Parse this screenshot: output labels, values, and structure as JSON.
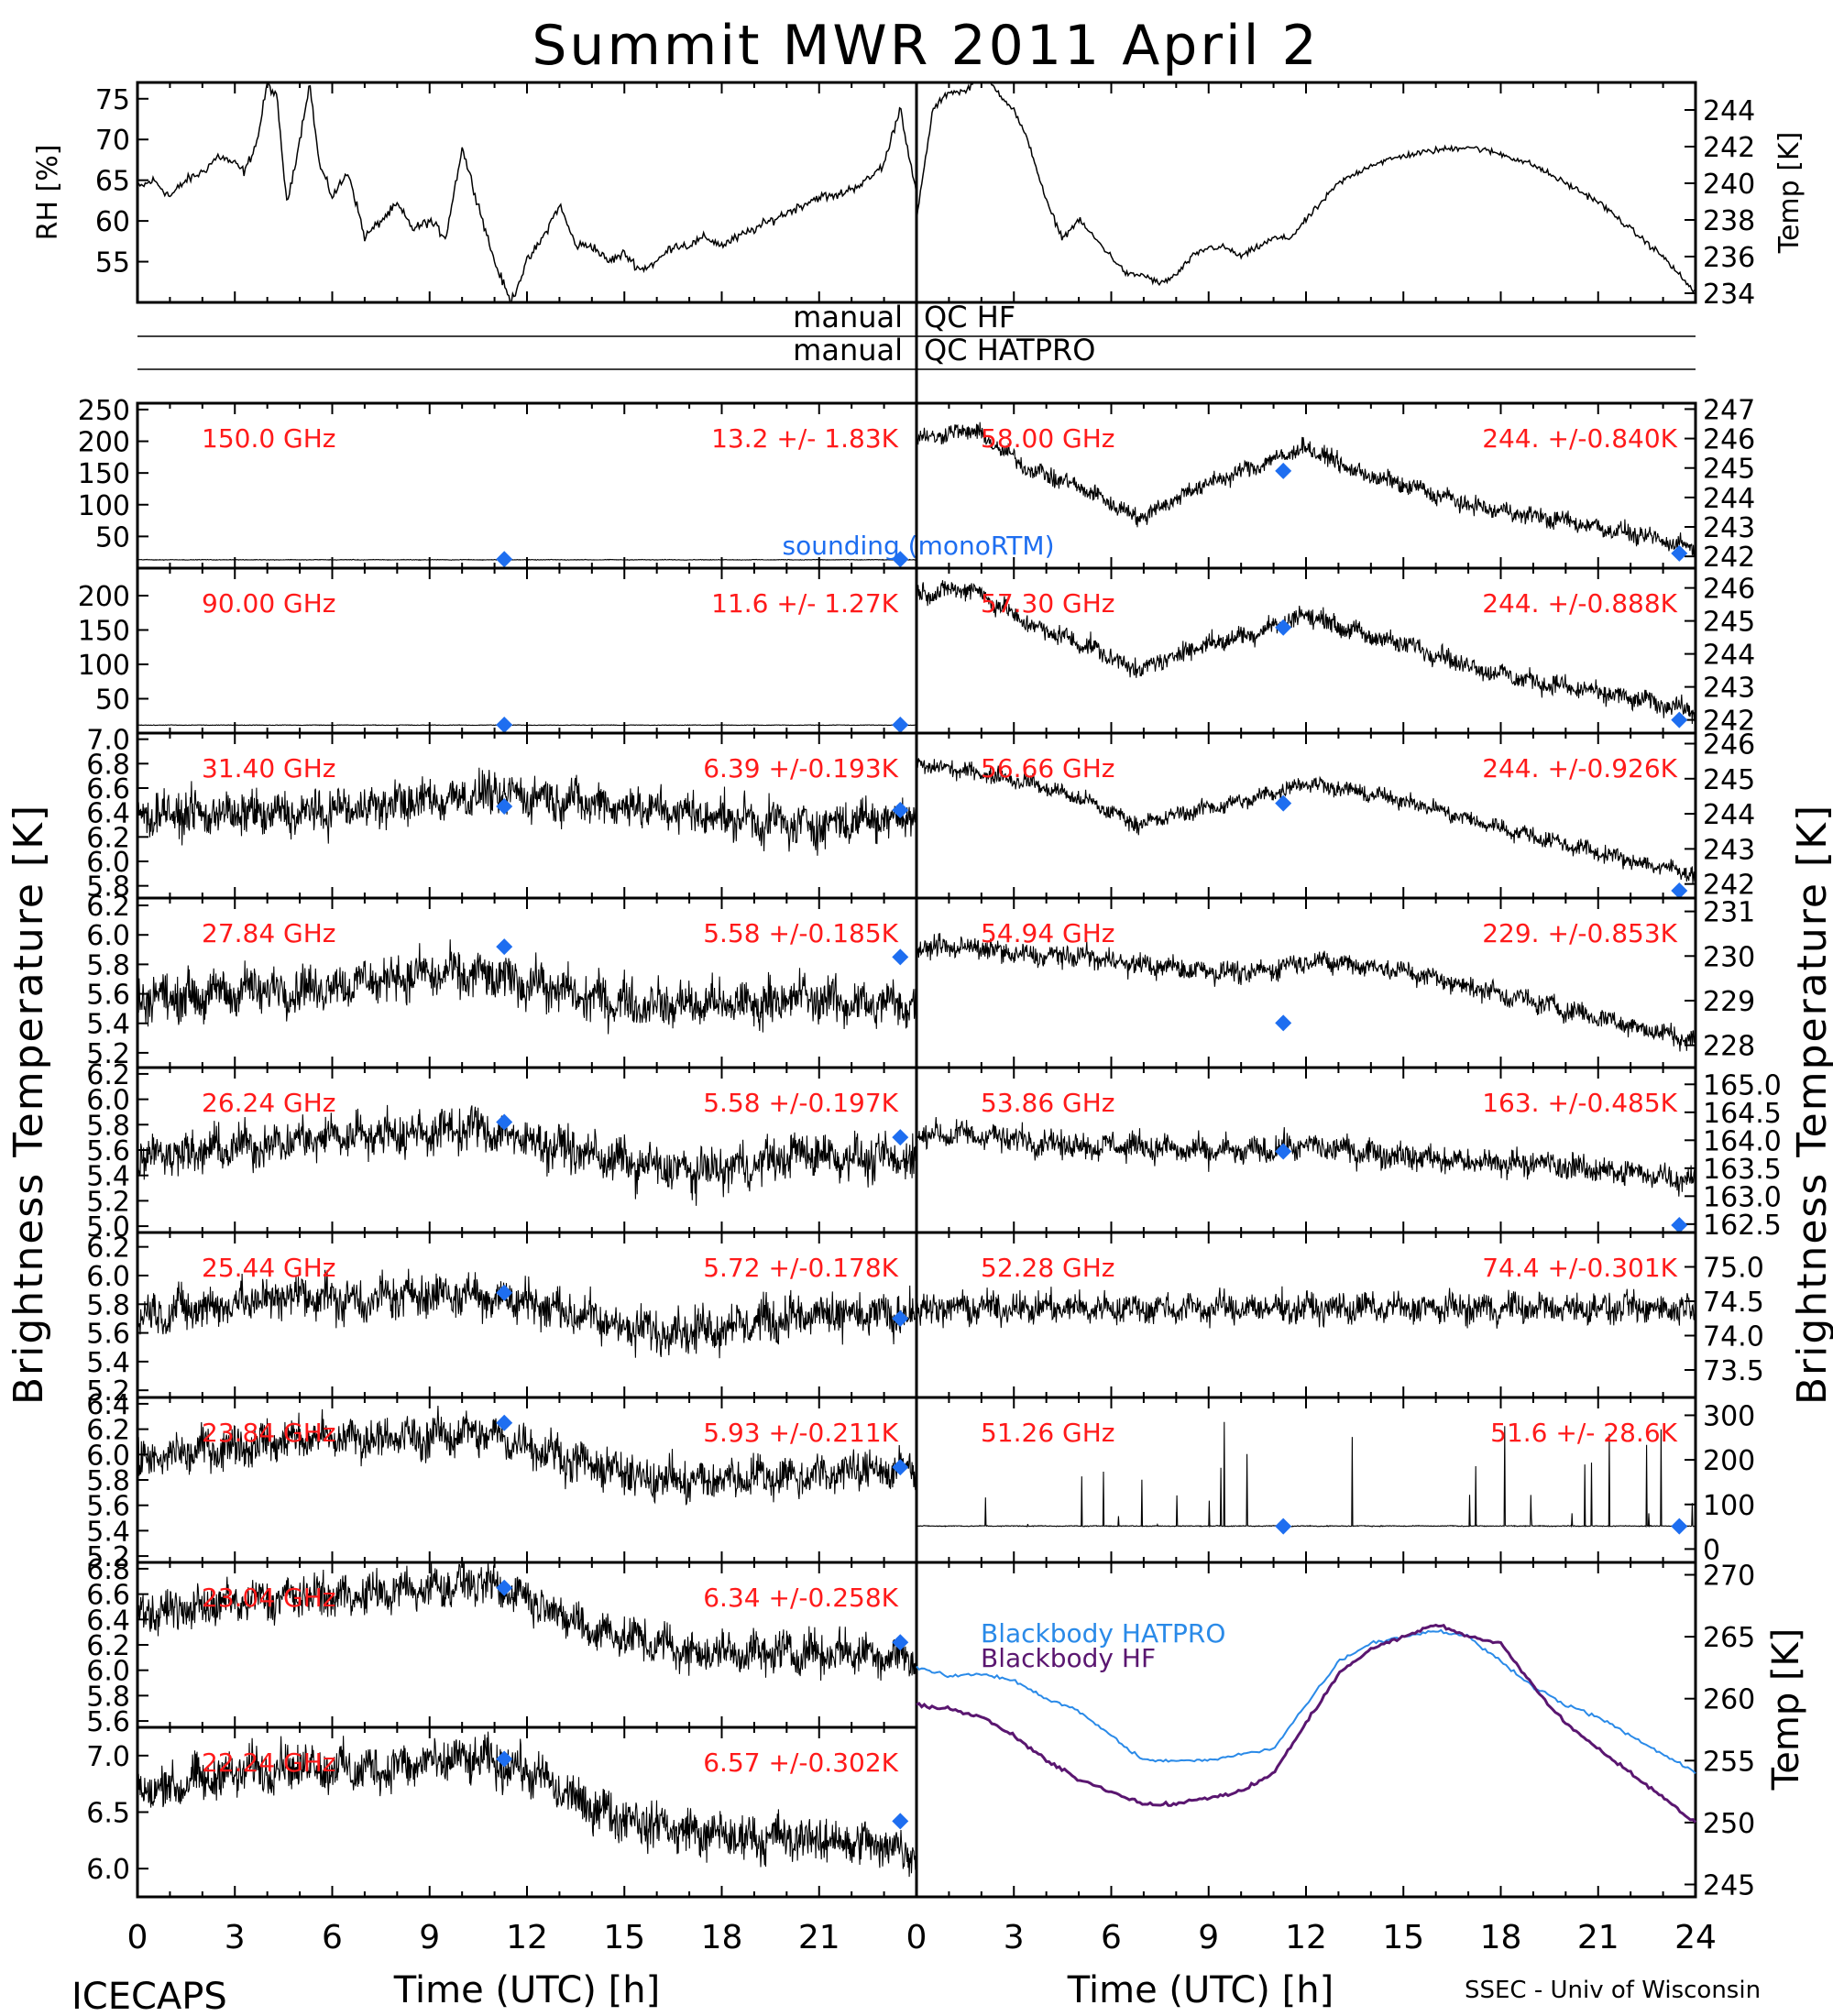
{
  "title": "Summit MWR 2011 April  2",
  "footer_left": "ICECAPS",
  "footer_right": "SSEC - Univ of Wisconsin",
  "x_axis": {
    "label": "Time (UTC) [h]",
    "left_ticks": [
      "0",
      "3",
      "6",
      "9",
      "12",
      "15",
      "18",
      "21"
    ],
    "right_ticks": [
      "0",
      "3",
      "6",
      "9",
      "12",
      "15",
      "18",
      "21",
      "24"
    ]
  },
  "side_labels": {
    "left": "Brightness Temperature [K]",
    "right": "Brightness Temperature [K]"
  },
  "qc_rows": [
    {
      "left": "manual",
      "right": "QC HF"
    },
    {
      "left": "manual",
      "right": "QC HATPRO"
    }
  ],
  "colors": {
    "stat_text": "#ff1a1a",
    "sounding": "#1e6ef0",
    "bb_hatpro": "#2a8ae8",
    "bb_hf": "#5a1670",
    "trace": "#000000"
  },
  "chart_data": [
    {
      "type": "line",
      "panel": "RH",
      "ylabel": "RH [%]",
      "y_ticks": [
        "75",
        "70",
        "65",
        "60",
        "55"
      ],
      "ylim": [
        50,
        77
      ],
      "xlim": [
        0,
        24
      ],
      "x": [
        0,
        0.5,
        1,
        1.5,
        2,
        2.5,
        3,
        3.3,
        3.7,
        4,
        4.3,
        4.6,
        5,
        5.3,
        5.6,
        6,
        6.5,
        7,
        7.5,
        8,
        8.5,
        9,
        9.5,
        10,
        10.5,
        11,
        11.5,
        12,
        12.5,
        13,
        13.5,
        14,
        14.5,
        15,
        15.5,
        16,
        16.5,
        17,
        17.5,
        18,
        18.5,
        19,
        19.5,
        20,
        20.5,
        21,
        21.5,
        22,
        22.5,
        23,
        23.5,
        24
      ],
      "values": [
        64,
        65,
        63,
        65,
        66,
        68,
        67,
        66,
        70,
        77,
        75,
        62,
        70,
        77,
        67,
        63,
        66,
        58,
        60,
        62,
        59,
        60,
        58,
        69,
        62,
        55,
        50,
        55,
        58,
        62,
        57,
        57,
        55,
        56,
        54,
        55,
        57,
        57,
        58,
        57,
        58,
        59,
        60,
        61,
        62,
        63,
        63,
        64,
        65,
        67,
        74,
        63
      ]
    },
    {
      "type": "line",
      "panel": "Temp",
      "ylabel": "Temp [K]",
      "y_ticks": [
        "244",
        "242",
        "240",
        "238",
        "236",
        "234"
      ],
      "ylim": [
        233.5,
        245.5
      ],
      "xlim": [
        0,
        24
      ],
      "x": [
        0,
        0.5,
        1,
        1.5,
        2,
        2.5,
        3,
        3.5,
        4,
        4.5,
        5,
        5.5,
        6,
        6.5,
        7,
        7.5,
        8,
        8.5,
        9,
        9.5,
        10,
        10.5,
        11,
        11.5,
        12,
        12.5,
        13,
        13.5,
        14,
        15,
        16,
        17,
        18,
        19,
        20,
        21,
        22,
        23,
        23.5,
        24
      ],
      "values": [
        238,
        244,
        245,
        245,
        246,
        245,
        244,
        242,
        239,
        237,
        238,
        237,
        236,
        235,
        235,
        234.5,
        235,
        236,
        236.5,
        236.5,
        236,
        236.5,
        237,
        237,
        238,
        239,
        240,
        240.5,
        241,
        241.5,
        241.8,
        242,
        241.6,
        241,
        240,
        239,
        237.5,
        236,
        235,
        234
      ]
    },
    {
      "type": "scatter-timeseries",
      "side": "left",
      "label": "150.0 GHz",
      "stat": "13.2 +/-  1.83K",
      "y_ticks": [
        "250",
        "200",
        "150",
        "100",
        "50"
      ],
      "ylim": [
        0,
        260
      ],
      "base": 13.2,
      "noise": 0.7,
      "trend": [
        0
      ],
      "sounding": [
        [
          11.3,
          14
        ],
        [
          23.5,
          14
        ]
      ],
      "note": "sounding (monoRTM)"
    },
    {
      "type": "scatter-timeseries",
      "side": "left",
      "label": "90.00 GHz",
      "stat": "11.6 +/-  1.27K",
      "y_ticks": [
        "200",
        "150",
        "100",
        "50"
      ],
      "ylim": [
        0,
        240
      ],
      "base": 11.6,
      "noise": 0.6,
      "trend": [
        0
      ],
      "sounding": [
        [
          11.3,
          12
        ],
        [
          23.5,
          12
        ]
      ]
    },
    {
      "type": "scatter-timeseries",
      "side": "left",
      "label": "31.40 GHz",
      "stat": "6.39 +/-0.193K",
      "y_ticks": [
        "7.0",
        "6.8",
        "6.6",
        "6.4",
        "6.2",
        "6.0",
        "5.8"
      ],
      "ylim": [
        5.7,
        7.05
      ],
      "base": 6.39,
      "noise": 0.26,
      "trend": [
        0,
        0,
        0,
        0,
        0.05,
        0.1,
        0.15,
        0.15,
        0.1,
        0.05,
        0,
        -0.05,
        -0.1,
        -0.05,
        0
      ],
      "sounding": [
        [
          11.3,
          6.45
        ],
        [
          23.5,
          6.42
        ]
      ]
    },
    {
      "type": "scatter-timeseries",
      "side": "left",
      "label": "27.84 GHz",
      "stat": "5.58 +/-0.185K",
      "y_ticks": [
        "6.2",
        "6.0",
        "5.8",
        "5.6",
        "5.4",
        "5.2"
      ],
      "ylim": [
        5.1,
        6.25
      ],
      "base": 5.58,
      "noise": 0.23,
      "trend": [
        0,
        0,
        0.05,
        0.05,
        0.1,
        0.15,
        0.15,
        0.1,
        0,
        -0.05,
        -0.05,
        -0.05,
        0,
        -0.05,
        -0.05
      ],
      "sounding": [
        [
          11.3,
          5.92
        ],
        [
          23.5,
          5.85
        ]
      ]
    },
    {
      "type": "scatter-timeseries",
      "side": "left",
      "label": "26.24 GHz",
      "stat": "5.58 +/-0.197K",
      "y_ticks": [
        "6.2",
        "6.0",
        "5.8",
        "5.6",
        "5.4",
        "5.2",
        "5.0"
      ],
      "ylim": [
        4.95,
        6.25
      ],
      "base": 5.58,
      "noise": 0.25,
      "trend": [
        0,
        0,
        0.05,
        0.1,
        0.15,
        0.15,
        0.2,
        0.1,
        0,
        -0.1,
        -0.15,
        -0.1,
        0,
        -0.05,
        -0.05
      ],
      "sounding": [
        [
          11.3,
          5.82
        ],
        [
          23.5,
          5.7
        ]
      ]
    },
    {
      "type": "scatter-timeseries",
      "side": "left",
      "label": "25.44 GHz",
      "stat": "5.72 +/-0.178K",
      "y_ticks": [
        "6.2",
        "6.0",
        "5.8",
        "5.6",
        "5.4",
        "5.2"
      ],
      "ylim": [
        5.15,
        6.3
      ],
      "base": 5.72,
      "noise": 0.23,
      "trend": [
        0,
        0.05,
        0.1,
        0.15,
        0.1,
        0.15,
        0.15,
        0.1,
        0,
        -0.1,
        -0.1,
        -0.05,
        0,
        0,
        0
      ],
      "sounding": [
        [
          11.3,
          5.88
        ],
        [
          23.5,
          5.7
        ]
      ]
    },
    {
      "type": "scatter-timeseries",
      "side": "left",
      "label": "23.84 GHz",
      "stat": "5.93 +/-0.211K",
      "y_ticks": [
        "6.4",
        "6.2",
        "6.0",
        "5.8",
        "5.6",
        "5.4",
        "5.2"
      ],
      "ylim": [
        5.15,
        6.45
      ],
      "base": 5.93,
      "noise": 0.24,
      "trend": [
        0,
        0.1,
        0.15,
        0.2,
        0.2,
        0.2,
        0.25,
        0.15,
        0,
        -0.1,
        -0.15,
        -0.1,
        -0.1,
        -0.05,
        -0.05
      ],
      "sounding": [
        [
          11.3,
          6.25
        ],
        [
          23.5,
          5.9
        ]
      ]
    },
    {
      "type": "scatter-timeseries",
      "side": "left",
      "label": "23.04 GHz",
      "stat": "6.34 +/-0.258K",
      "y_ticks": [
        "6.8",
        "6.6",
        "6.4",
        "6.2",
        "6.0",
        "5.8",
        "5.6"
      ],
      "ylim": [
        5.55,
        6.85
      ],
      "base": 6.34,
      "noise": 0.24,
      "trend": [
        0.1,
        0.15,
        0.2,
        0.25,
        0.25,
        0.3,
        0.35,
        0.25,
        0,
        -0.1,
        -0.2,
        -0.2,
        -0.2,
        -0.2,
        -0.25
      ],
      "sounding": [
        [
          11.3,
          6.65
        ],
        [
          23.5,
          6.22
        ]
      ]
    },
    {
      "type": "scatter-timeseries",
      "side": "left",
      "label": "22.24 GHz",
      "stat": "6.57 +/-0.302K",
      "y_ticks": [
        "7.0",
        "6.5",
        "6.0"
      ],
      "ylim": [
        5.75,
        7.25
      ],
      "base": 6.57,
      "noise": 0.3,
      "trend": [
        0.1,
        0.2,
        0.3,
        0.35,
        0.3,
        0.35,
        0.4,
        0.3,
        0,
        -0.15,
        -0.25,
        -0.3,
        -0.3,
        -0.35,
        -0.4
      ],
      "sounding": [
        [
          11.3,
          6.97
        ],
        [
          23.5,
          6.42
        ]
      ]
    },
    {
      "type": "scatter-timeseries",
      "side": "right",
      "label": "58.00 GHz",
      "stat": "244. +/-0.840K",
      "y_ticks": [
        "247",
        "246",
        "245",
        "244",
        "243",
        "242"
      ],
      "ylim": [
        241.6,
        247.2
      ],
      "base": 244,
      "noise": 0.45,
      "trend": [
        2,
        2.3,
        1,
        0.3,
        -0.7,
        0.3,
        1,
        1.7,
        0.8,
        0.3,
        -0.3,
        -0.6,
        -0.9,
        -1.3,
        -1.7
      ],
      "sounding": [
        [
          11.3,
          244.9
        ],
        [
          23.5,
          242.1
        ]
      ]
    },
    {
      "type": "scatter-timeseries",
      "side": "right",
      "label": "57.30 GHz",
      "stat": "244. +/-0.888K",
      "y_ticks": [
        "246",
        "245",
        "244",
        "243",
        "242"
      ],
      "ylim": [
        241.6,
        246.6
      ],
      "base": 244,
      "noise": 0.45,
      "trend": [
        1.8,
        2,
        0.9,
        0.3,
        -0.5,
        0.2,
        0.6,
        1.2,
        0.6,
        0.2,
        -0.4,
        -0.8,
        -1.1,
        -1.4,
        -1.7
      ],
      "sounding": [
        [
          11.3,
          244.8
        ],
        [
          23.5,
          242
        ]
      ]
    },
    {
      "type": "scatter-timeseries",
      "side": "right",
      "label": "56.66 GHz",
      "stat": "244. +/-0.926K",
      "y_ticks": [
        "246",
        "245",
        "244",
        "243",
        "242"
      ],
      "ylim": [
        241.6,
        246.3
      ],
      "base": 244,
      "noise": 0.35,
      "trend": [
        1.4,
        1.2,
        0.9,
        0.4,
        -0.3,
        0.1,
        0.4,
        0.9,
        0.6,
        0.3,
        -0.2,
        -0.6,
        -1,
        -1.4,
        -1.7
      ],
      "sounding": [
        [
          11.3,
          244.3
        ],
        [
          23.5,
          241.8
        ]
      ]
    },
    {
      "type": "scatter-timeseries",
      "side": "right",
      "label": "54.94 GHz",
      "stat": "229. +/-0.853K",
      "y_ticks": [
        "231",
        "230",
        "229",
        "228"
      ],
      "ylim": [
        227.5,
        231.3
      ],
      "base": 229,
      "noise": 0.35,
      "trend": [
        1.2,
        1.2,
        1,
        1,
        0.8,
        0.7,
        0.6,
        0.9,
        0.8,
        0.6,
        0.3,
        0,
        -0.3,
        -0.6,
        -0.9
      ],
      "sounding": [
        [
          11.3,
          228.5
        ]
      ]
    },
    {
      "type": "scatter-timeseries",
      "side": "right",
      "label": "53.86 GHz",
      "stat": "163. +/-0.485K",
      "y_ticks": [
        "165.0",
        "164.5",
        "164.0",
        "163.5",
        "163.0",
        "162.5"
      ],
      "ylim": [
        162.35,
        165.3
      ],
      "base": 163.8,
      "noise": 0.35,
      "trend": [
        0.3,
        0.3,
        0.2,
        0.1,
        0.1,
        0,
        0,
        0.1,
        0,
        -0.1,
        -0.2,
        -0.2,
        -0.3,
        -0.4,
        -0.5
      ],
      "sounding": [
        [
          11.3,
          163.8
        ],
        [
          23.5,
          162.4
        ]
      ]
    },
    {
      "type": "scatter-timeseries",
      "side": "right",
      "label": "52.28 GHz",
      "stat": "74.4 +/-0.301K",
      "y_ticks": [
        "75.0",
        "74.5",
        "74.0",
        "73.5"
      ],
      "ylim": [
        73.1,
        75.5
      ],
      "base": 74.4,
      "noise": 0.32,
      "trend": [
        0
      ],
      "sounding": []
    },
    {
      "type": "scatter-timeseries",
      "side": "right",
      "label": "51.26 GHz",
      "stat": "51.6 +/- 28.6K",
      "y_ticks": [
        "300",
        "200",
        "100",
        "0"
      ],
      "ylim": [
        -30,
        340
      ],
      "base": 51.6,
      "noise": 1.5,
      "trend": [
        0
      ],
      "spikes": true,
      "sounding": [
        [
          11.3,
          51
        ],
        [
          23.5,
          51
        ]
      ]
    },
    {
      "type": "line",
      "panel": "Blackbody",
      "ylabel": "Temp [K]",
      "y_ticks": [
        "270",
        "265",
        "260",
        "255",
        "250",
        "245"
      ],
      "ylim": [
        244,
        271
      ],
      "xlim": [
        0,
        24
      ],
      "series": [
        {
          "name": "Blackbody HATPRO",
          "x": [
            0,
            1,
            2,
            3,
            4,
            5,
            6,
            7,
            8,
            9,
            10,
            11,
            12,
            13,
            14,
            15,
            16,
            17,
            18,
            19,
            20,
            21,
            22,
            23,
            24
          ],
          "values": [
            262.5,
            261.8,
            262,
            261.5,
            260,
            259,
            257,
            255,
            255,
            255,
            255.5,
            256,
            259.5,
            263,
            264.5,
            265,
            265.5,
            265,
            263,
            261,
            259.5,
            258.5,
            257,
            255.5,
            254
          ]
        },
        {
          "name": "Blackbody HF",
          "x": [
            0,
            1,
            2,
            3,
            4,
            5,
            6,
            7,
            8,
            9,
            10,
            11,
            12,
            13,
            14,
            15,
            16,
            17,
            18,
            19,
            20,
            21,
            22,
            23,
            24
          ],
          "values": [
            259.5,
            259.2,
            258.5,
            257,
            255,
            253.5,
            252.5,
            251.5,
            251.5,
            252,
            252.5,
            254,
            258,
            262,
            264,
            265,
            266,
            265,
            264.5,
            261,
            258,
            256,
            254,
            252,
            250
          ]
        }
      ]
    }
  ]
}
